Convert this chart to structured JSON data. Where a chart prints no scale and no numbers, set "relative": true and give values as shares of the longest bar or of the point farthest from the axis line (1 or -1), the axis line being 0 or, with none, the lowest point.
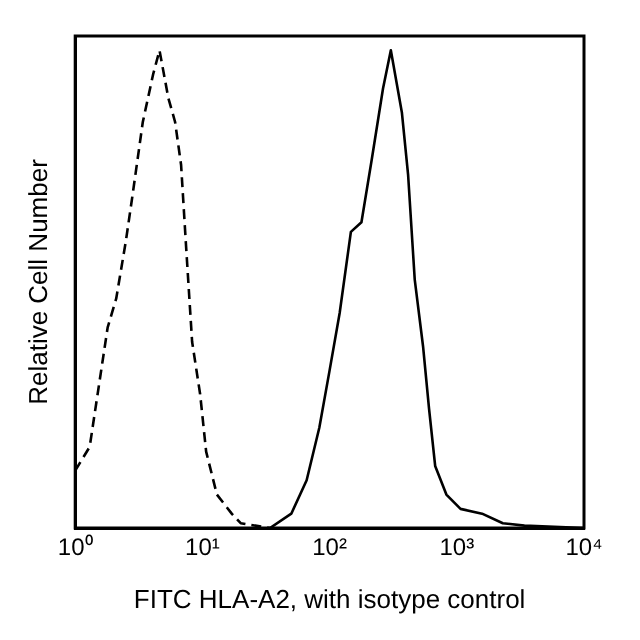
{
  "chart_data": {
    "type": "line",
    "relative": true,
    "xlabel": "FITC HLA-A2, with isotype control",
    "ylabel": "Relative Cell Number",
    "log": "x",
    "xlim": [
      1,
      10000
    ],
    "xticks": [
      {
        "value": 1,
        "label": "10⁰"
      },
      {
        "value": 10,
        "label": "10¹"
      },
      {
        "value": 100,
        "label": "10²"
      },
      {
        "value": 1000,
        "label": "10³"
      },
      {
        "value": 10000,
        "label": "10⁴"
      }
    ],
    "grid": false,
    "legend": false,
    "marker": "none",
    "series": [
      {
        "color": "#000000",
        "line_style": "dashed",
        "x": [
          1,
          1.3,
          1.5,
          1.8,
          2.1,
          2.5,
          2.8,
          3.4,
          4.1,
          4.6,
          5.4,
          6.1,
          6.8,
          7.4,
          8.3,
          9.6,
          10.7,
          13,
          17,
          20,
          34
        ],
        "values": [
          0.12,
          0.17,
          0.28,
          0.42,
          0.48,
          0.6,
          0.69,
          0.85,
          0.95,
          1,
          0.9,
          0.85,
          0.76,
          0.6,
          0.39,
          0.28,
          0.16,
          0.07,
          0.03,
          0.01,
          0
        ]
      },
      {
        "color": "#000000",
        "line_style": "solid",
        "x": [
          34,
          50,
          66,
          83,
          100,
          120,
          147,
          178,
          214,
          263,
          303,
          370,
          414,
          467,
          543,
          605,
          676,
          828,
          1070,
          1580,
          2300,
          3400,
          10000
        ],
        "values": [
          0,
          0.03,
          0.1,
          0.21,
          0.33,
          0.45,
          0.62,
          0.64,
          0.77,
          0.92,
          1,
          0.87,
          0.74,
          0.52,
          0.38,
          0.25,
          0.13,
          0.07,
          0.04,
          0.03,
          0.01,
          0.005,
          0
        ]
      }
    ]
  }
}
